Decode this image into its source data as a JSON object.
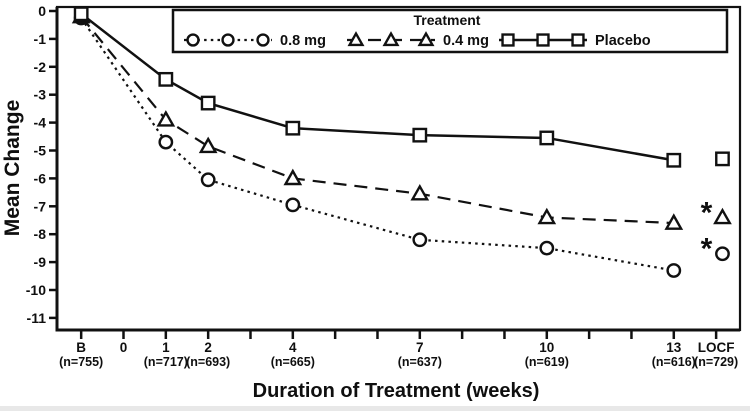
{
  "chart_data": {
    "type": "line",
    "title": "",
    "ylabel": "Mean Change",
    "xlabel": "Duration of Treatment (weeks)",
    "ylim": [
      -11.5,
      0.2
    ],
    "grid": false,
    "legend_position": "top",
    "legend": {
      "title": "Treatment"
    },
    "y_ticks": [
      0,
      -1,
      -2,
      -3,
      -4,
      -5,
      -6,
      -7,
      -8,
      -9,
      -10,
      -11
    ],
    "x_ticks": [
      {
        "label": "B",
        "pos": -1,
        "n": "(n=755)"
      },
      {
        "label": "0",
        "pos": 0,
        "n": ""
      },
      {
        "label": "1",
        "pos": 1,
        "n": "(n=717)"
      },
      {
        "label": "2",
        "pos": 2,
        "n": "(n=693)"
      },
      {
        "label": "4",
        "pos": 4,
        "n": "(n=665)"
      },
      {
        "label": "7",
        "pos": 7,
        "n": "(n=637)"
      },
      {
        "label": "10",
        "pos": 10,
        "n": "(n=619)"
      },
      {
        "label": "13",
        "pos": 13,
        "n": "(n=616)"
      },
      {
        "label": "LOCF",
        "pos": 14,
        "n": "(n=729)"
      }
    ],
    "x_minor_ticks": [
      3,
      5,
      6,
      8,
      9,
      11,
      12
    ],
    "series": [
      {
        "name": "0.8 mg",
        "marker": "circle",
        "line_style": "dotted",
        "x": [
          -1,
          1,
          2,
          4,
          7,
          10,
          13
        ],
        "values": [
          -0.25,
          -4.7,
          -6.05,
          -6.95,
          -8.2,
          -8.5,
          -9.3
        ],
        "locf": {
          "x": 14.15,
          "value": -8.7,
          "significant": true
        }
      },
      {
        "name": "0.4 mg",
        "marker": "triangle",
        "line_style": "dashed",
        "x": [
          -1,
          1,
          2,
          4,
          7,
          10,
          13
        ],
        "values": [
          -0.2,
          -3.9,
          -4.85,
          -6.0,
          -6.55,
          -7.4,
          -7.6
        ],
        "locf": {
          "x": 14.15,
          "value": -7.4,
          "significant": true
        }
      },
      {
        "name": "Placebo",
        "marker": "square",
        "line_style": "solid",
        "x": [
          -1,
          1,
          2,
          4,
          7,
          10,
          13
        ],
        "values": [
          -0.1,
          -2.45,
          -3.3,
          -4.2,
          -4.45,
          -4.55,
          -5.35
        ],
        "locf": {
          "x": 14.15,
          "value": -5.3,
          "significant": false
        }
      }
    ],
    "significance_symbol": "*",
    "colors": {
      "line": "#111111",
      "background": "#ffffff"
    }
  }
}
